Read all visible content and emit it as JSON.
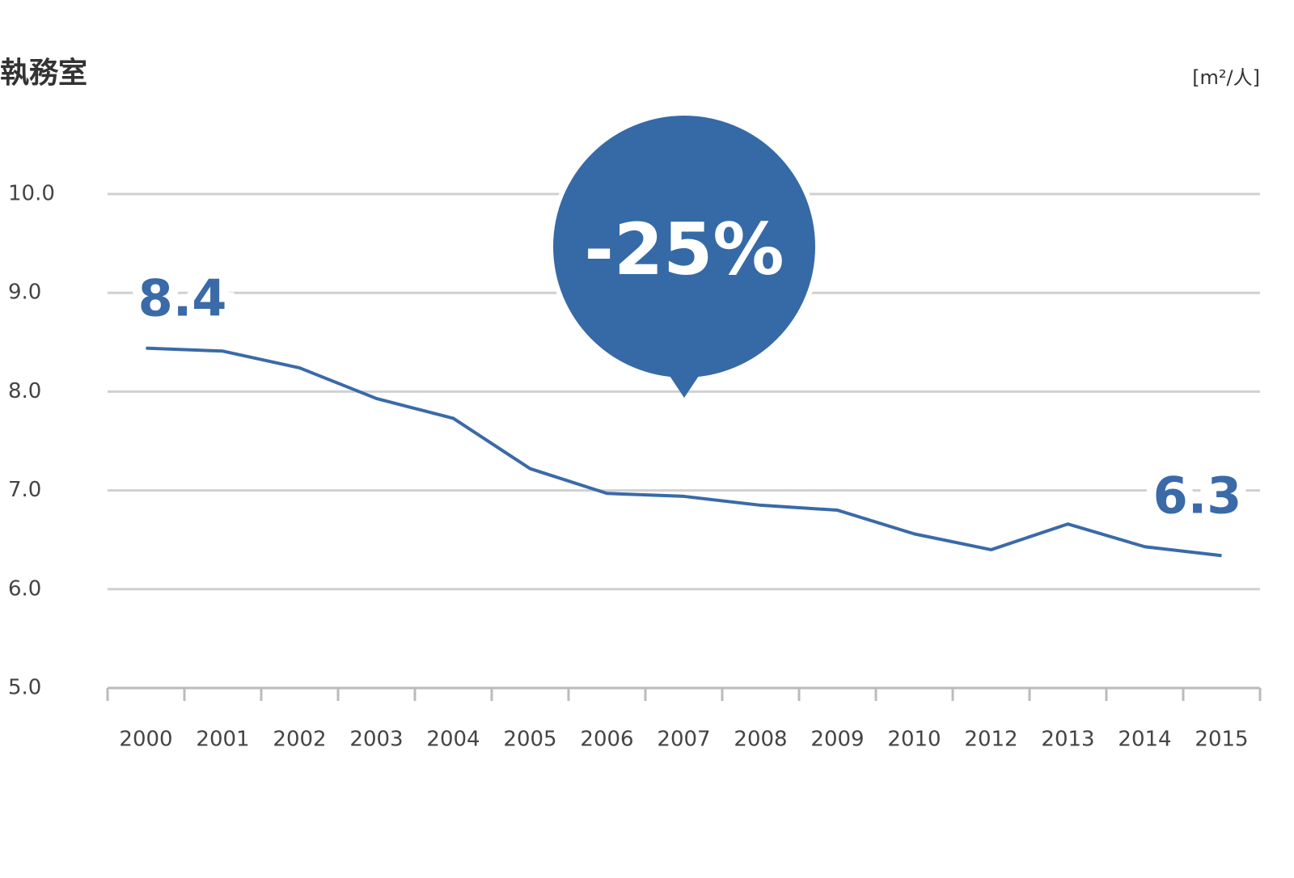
{
  "chart_data": {
    "type": "line",
    "title": "執務室",
    "unit_label": "[m²/人]",
    "annotation": "-25%",
    "categories": [
      "2000",
      "2001",
      "2002",
      "2003",
      "2004",
      "2005",
      "2006",
      "2007",
      "2008",
      "2009",
      "2010",
      "2012",
      "2013",
      "2014",
      "2015"
    ],
    "values": [
      8.44,
      8.41,
      8.24,
      7.93,
      7.73,
      7.22,
      6.97,
      6.94,
      6.85,
      6.8,
      6.56,
      6.4,
      6.66,
      6.43,
      6.34
    ],
    "value_labels": [
      "8.4",
      null,
      null,
      null,
      null,
      null,
      null,
      null,
      null,
      null,
      null,
      null,
      null,
      null,
      "6.3"
    ],
    "color": "#3a6aa8",
    "ylim": [
      5,
      10
    ],
    "yticks": [
      {
        "value": 5,
        "label": "5.0"
      },
      {
        "value": 6,
        "label": "6.0"
      },
      {
        "value": 7,
        "label": "7.0"
      },
      {
        "value": 8,
        "label": "8.0"
      },
      {
        "value": 9,
        "label": "9.0"
      },
      {
        "value": 10,
        "label": "10.0"
      }
    ],
    "grid": true
  }
}
